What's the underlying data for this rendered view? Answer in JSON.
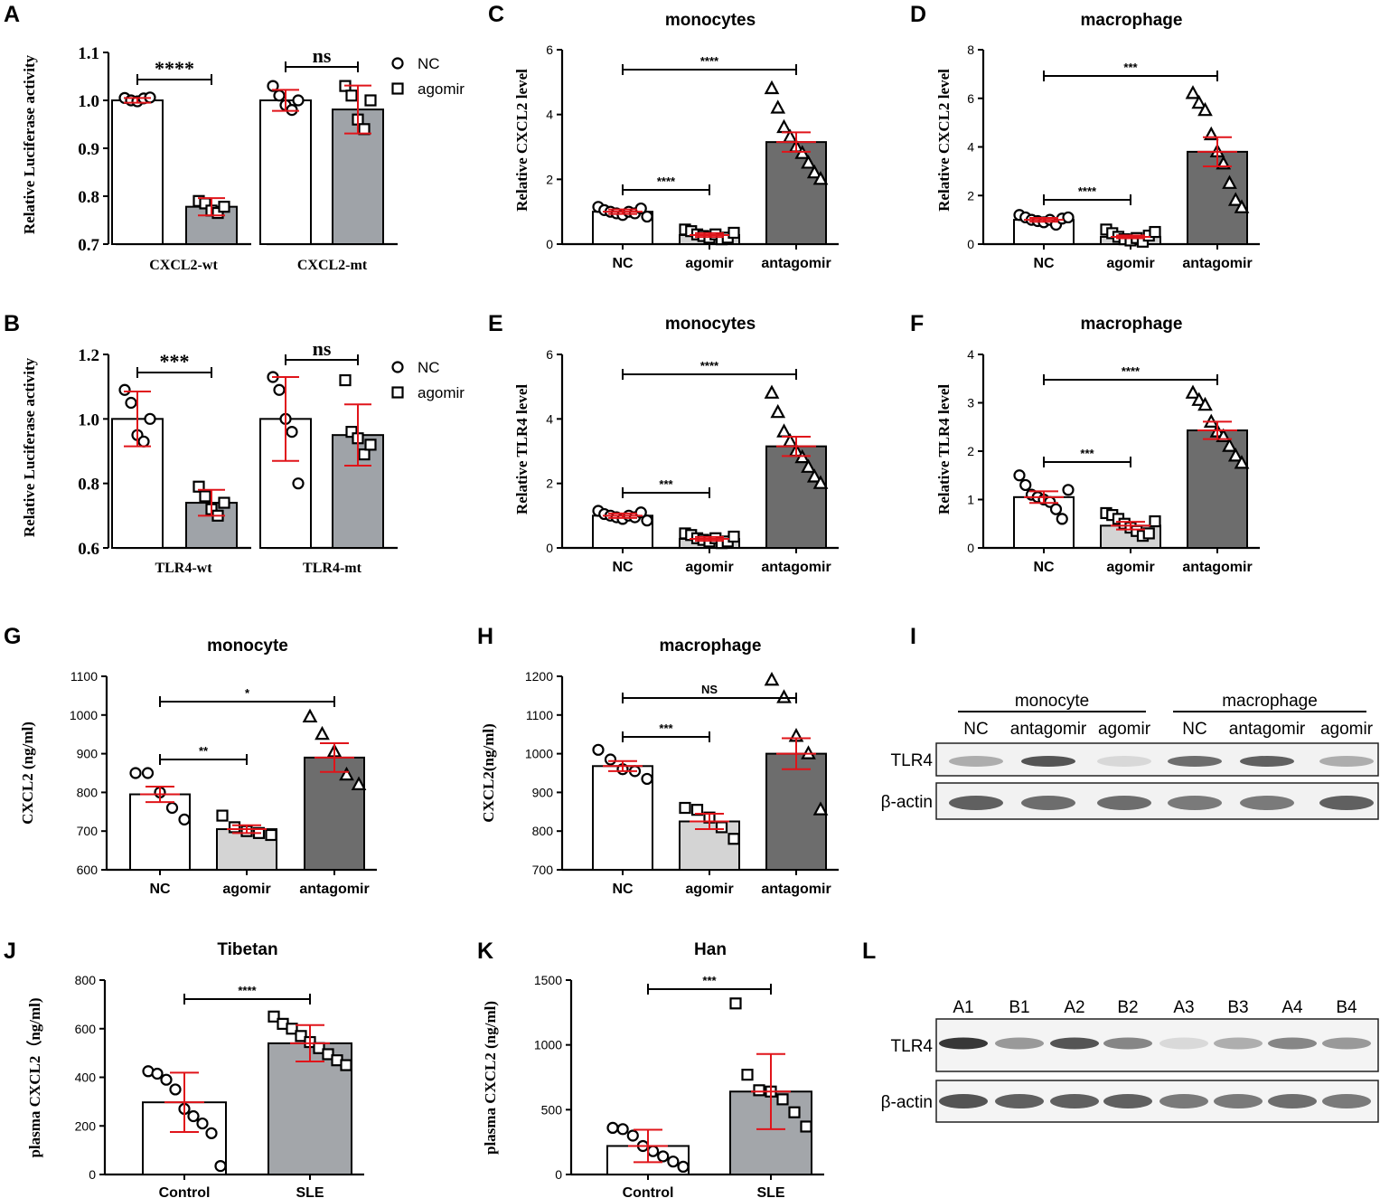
{
  "panel_letters": {
    "A": "A",
    "B": "B",
    "C": "C",
    "D": "D",
    "E": "E",
    "F": "F",
    "G": "G",
    "H": "H",
    "I": "I",
    "J": "J",
    "K": "K",
    "L": "L"
  },
  "colors": {
    "nc": "#ffffff",
    "agomir": "#d4d4d4",
    "antagomir": "#6d6d6d",
    "luc_agomir": "#9fa3a8",
    "sle": "#a3a6aa",
    "error": "#e0141a"
  },
  "chart_data": [
    {
      "id": "A",
      "type": "bar",
      "title": "",
      "ylabel": "Relative Luciferase activity",
      "ylim": [
        0.7,
        1.1
      ],
      "yticks": [
        0.7,
        0.8,
        0.9,
        1.0,
        1.1
      ],
      "ytick_labels": [
        "0.7",
        "0.8",
        "0.9",
        "1.0",
        "1.1"
      ],
      "groups": [
        "CXCL2-wt",
        "CXCL2-mt"
      ],
      "legend": [
        "NC",
        "agomir"
      ],
      "series": [
        {
          "name": "NC",
          "values": [
            1.0,
            1.0
          ],
          "err": [
            0.005,
            0.022
          ],
          "points": [
            [
              1.005,
              1.0,
              0.998,
              1.004,
              1.006
            ],
            [
              1.03,
              1.01,
              0.99,
              0.98,
              1.0
            ]
          ]
        },
        {
          "name": "agomir",
          "values": [
            0.778,
            0.981
          ],
          "err": [
            0.018,
            0.05
          ],
          "points": [
            [
              0.79,
              0.785,
              0.77,
              0.765,
              0.778
            ],
            [
              1.03,
              1.01,
              0.96,
              0.94,
              1.0
            ]
          ]
        }
      ],
      "comparisons": [
        {
          "text": "****",
          "from": 0,
          "to": 1,
          "group": 0
        },
        {
          "text": "ns",
          "from": 0,
          "to": 1,
          "group": 1
        }
      ]
    },
    {
      "id": "B",
      "type": "bar",
      "title": "",
      "ylabel": "Relative Luciferase activity",
      "ylim": [
        0.6,
        1.2
      ],
      "yticks": [
        0.6,
        0.8,
        1.0,
        1.2
      ],
      "ytick_labels": [
        "0.6",
        "0.8",
        "1.0",
        "1.2"
      ],
      "groups": [
        "TLR4-wt",
        "TLR4-mt"
      ],
      "legend": [
        "NC",
        "agomir"
      ],
      "series": [
        {
          "name": "NC",
          "values": [
            1.0,
            1.0
          ],
          "err": [
            0.085,
            0.13
          ],
          "points": [
            [
              1.09,
              1.05,
              0.95,
              0.93,
              1.0
            ],
            [
              1.13,
              1.09,
              1.0,
              0.96,
              0.8
            ]
          ]
        },
        {
          "name": "agomir",
          "values": [
            0.74,
            0.95
          ],
          "err": [
            0.04,
            0.095
          ],
          "points": [
            [
              0.79,
              0.76,
              0.72,
              0.7,
              0.74
            ],
            [
              1.12,
              0.96,
              0.94,
              0.89,
              0.92
            ]
          ]
        }
      ],
      "comparisons": [
        {
          "text": "***",
          "from": 0,
          "to": 1,
          "group": 0
        },
        {
          "text": "ns",
          "from": 0,
          "to": 1,
          "group": 1
        }
      ]
    },
    {
      "id": "C",
      "type": "bar",
      "title": "monocytes",
      "ylabel": "Relative CXCL2  level",
      "ylim": [
        0,
        6
      ],
      "yticks": [
        0,
        2,
        4,
        6
      ],
      "ytick_labels": [
        "0",
        "2",
        "4",
        "6"
      ],
      "categories": [
        "NC",
        "agomir",
        "antagomir"
      ],
      "values": [
        1.0,
        0.28,
        3.15
      ],
      "err": [
        0.07,
        0.06,
        0.3
      ],
      "markers": [
        "circle",
        "square",
        "triangle"
      ],
      "points": [
        [
          1.15,
          1.05,
          1.0,
          0.95,
          0.9,
          1.0,
          0.95,
          1.1,
          0.85
        ],
        [
          0.45,
          0.4,
          0.3,
          0.25,
          0.2,
          0.3,
          0.15,
          0.2,
          0.35
        ],
        [
          4.8,
          4.2,
          3.6,
          3.3,
          3.0,
          2.8,
          2.5,
          2.2,
          2.0
        ]
      ],
      "comparisons": [
        {
          "text": "****",
          "from": 0,
          "to": 2
        },
        {
          "text": "****",
          "from": 0,
          "to": 1
        }
      ]
    },
    {
      "id": "D",
      "type": "bar",
      "title": "macrophage",
      "ylabel": "Relative CXCL2  level",
      "ylim": [
        0,
        8
      ],
      "yticks": [
        0,
        2,
        4,
        6,
        8
      ],
      "ytick_labels": [
        "0",
        "2",
        "4",
        "6",
        "8"
      ],
      "categories": [
        "NC",
        "agomir",
        "antagomir"
      ],
      "values": [
        1.0,
        0.3,
        3.8
      ],
      "err": [
        0.08,
        0.06,
        0.6
      ],
      "markers": [
        "circle",
        "square",
        "triangle"
      ],
      "points": [
        [
          1.2,
          1.1,
          1.0,
          0.95,
          0.9,
          1.0,
          0.8,
          1.05,
          1.1
        ],
        [
          0.6,
          0.45,
          0.3,
          0.2,
          0.15,
          0.25,
          0.1,
          0.35,
          0.5
        ],
        [
          6.2,
          5.8,
          5.5,
          4.5,
          3.8,
          3.3,
          2.5,
          1.8,
          1.5
        ]
      ],
      "comparisons": [
        {
          "text": "***",
          "from": 0,
          "to": 2
        },
        {
          "text": "****",
          "from": 0,
          "to": 1
        }
      ]
    },
    {
      "id": "E",
      "type": "bar",
      "title": "monocytes",
      "ylabel": "Relative TLR4  level",
      "ylim": [
        0,
        6
      ],
      "yticks": [
        0,
        2,
        4,
        6
      ],
      "ytick_labels": [
        "0",
        "2",
        "4",
        "6"
      ],
      "categories": [
        "NC",
        "agomir",
        "antagomir"
      ],
      "values": [
        1.0,
        0.28,
        3.15
      ],
      "err": [
        0.07,
        0.06,
        0.3
      ],
      "markers": [
        "circle",
        "square",
        "triangle"
      ],
      "points": [
        [
          1.15,
          1.05,
          1.0,
          0.95,
          0.9,
          1.0,
          0.95,
          1.1,
          0.85
        ],
        [
          0.45,
          0.4,
          0.3,
          0.25,
          0.2,
          0.3,
          0.15,
          0.2,
          0.35
        ],
        [
          4.8,
          4.2,
          3.6,
          3.3,
          3.0,
          2.8,
          2.5,
          2.2,
          2.0
        ]
      ],
      "comparisons": [
        {
          "text": "****",
          "from": 0,
          "to": 2
        },
        {
          "text": "***",
          "from": 0,
          "to": 1
        }
      ]
    },
    {
      "id": "F",
      "type": "bar",
      "title": "macrophage",
      "ylabel": "Relative TLR4  level",
      "ylim": [
        0,
        4
      ],
      "yticks": [
        0,
        1,
        2,
        3,
        4
      ],
      "ytick_labels": [
        "0",
        "1",
        "2",
        "3",
        "4"
      ],
      "categories": [
        "NC",
        "agomir",
        "antagomir"
      ],
      "values": [
        1.05,
        0.46,
        2.43
      ],
      "err": [
        0.12,
        0.08,
        0.18
      ],
      "markers": [
        "circle",
        "square",
        "triangle"
      ],
      "points": [
        [
          1.5,
          1.3,
          1.1,
          1.05,
          1.0,
          0.95,
          0.8,
          0.6,
          1.2
        ],
        [
          0.72,
          0.68,
          0.6,
          0.5,
          0.42,
          0.35,
          0.25,
          0.3,
          0.55
        ],
        [
          3.2,
          3.05,
          2.95,
          2.6,
          2.4,
          2.3,
          2.1,
          1.9,
          1.75
        ]
      ],
      "comparisons": [
        {
          "text": "****",
          "from": 0,
          "to": 2
        },
        {
          "text": "***",
          "from": 0,
          "to": 1
        }
      ]
    },
    {
      "id": "G",
      "type": "bar",
      "title": "monocyte",
      "ylabel": "CXCL2 (ng/ml)",
      "ylim": [
        600,
        1100
      ],
      "yticks": [
        600,
        700,
        800,
        900,
        1000,
        1100
      ],
      "ytick_labels": [
        "600",
        "700",
        "800",
        "900",
        "1000",
        "1100"
      ],
      "categories": [
        "NC",
        "agomir",
        "antagomir"
      ],
      "values": [
        795,
        705,
        890
      ],
      "err": [
        20,
        10,
        37
      ],
      "markers": [
        "circle",
        "square",
        "triangle"
      ],
      "points": [
        [
          850,
          850,
          800,
          760,
          730
        ],
        [
          740,
          710,
          700,
          695,
          690
        ],
        [
          995,
          950,
          905,
          845,
          820
        ]
      ],
      "comparisons": [
        {
          "text": "*",
          "from": 0,
          "to": 2
        },
        {
          "text": "**",
          "from": 0,
          "to": 1
        }
      ]
    },
    {
      "id": "H",
      "type": "bar",
      "title": "macrophage",
      "ylabel": "CXCL2(ng/ml)",
      "ylim": [
        700,
        1200
      ],
      "yticks": [
        700,
        800,
        900,
        1000,
        1100,
        1200
      ],
      "ytick_labels": [
        "700",
        "800",
        "900",
        "1000",
        "1100",
        "1200"
      ],
      "categories": [
        "NC",
        "agomir",
        "antagomir"
      ],
      "values": [
        968,
        825,
        1000
      ],
      "err": [
        13,
        20,
        40
      ],
      "markers": [
        "circle",
        "square",
        "triangle"
      ],
      "points": [
        [
          1010,
          985,
          960,
          955,
          935
        ],
        [
          860,
          855,
          835,
          810,
          780
        ],
        [
          1190,
          1145,
          1045,
          1000,
          855
        ]
      ],
      "comparisons": [
        {
          "text": "NS",
          "from": 0,
          "to": 2
        },
        {
          "text": "***",
          "from": 0,
          "to": 1
        }
      ]
    },
    {
      "id": "J",
      "type": "bar",
      "title": "Tibetan",
      "ylabel": "plasma CXCL2（ng/ml)",
      "ylim": [
        0,
        800
      ],
      "yticks": [
        0,
        200,
        400,
        600,
        800
      ],
      "ytick_labels": [
        "0",
        "200",
        "400",
        "600",
        "800"
      ],
      "categories": [
        "Control",
        "SLE"
      ],
      "values": [
        297,
        540
      ],
      "err": [
        122,
        75
      ],
      "markers": [
        "circle",
        "square"
      ],
      "points": [
        [
          425,
          415,
          390,
          350,
          270,
          240,
          210,
          170,
          35
        ],
        [
          650,
          620,
          600,
          570,
          545,
          520,
          495,
          470,
          450
        ]
      ],
      "comparisons": [
        {
          "text": "****",
          "from": 0,
          "to": 1
        }
      ]
    },
    {
      "id": "K",
      "type": "bar",
      "title": "Han",
      "ylabel": "plasma CXCL2 (ng/ml)",
      "ylim": [
        0,
        1500
      ],
      "yticks": [
        0,
        500,
        1000,
        1500
      ],
      "ytick_labels": [
        "0",
        "500",
        "1000",
        "1500"
      ],
      "categories": [
        "Control",
        "SLE"
      ],
      "values": [
        220,
        640
      ],
      "err": [
        125,
        290
      ],
      "markers": [
        "circle",
        "square"
      ],
      "points": [
        [
          360,
          350,
          300,
          220,
          180,
          140,
          100,
          60
        ],
        [
          1320,
          770,
          650,
          640,
          580,
          480,
          370
        ]
      ],
      "comparisons": [
        {
          "text": "***",
          "from": 0,
          "to": 1
        }
      ]
    }
  ],
  "blots": {
    "I": {
      "groups": [
        "monocyte",
        "macrophage"
      ],
      "lanes": [
        "NC",
        "antagomir",
        "agomir",
        "NC",
        "antagomir",
        "agomir"
      ],
      "rows": [
        "TLR4",
        "β-actin"
      ],
      "intensity": [
        [
          0.45,
          0.85,
          0.15,
          0.75,
          0.8,
          0.45
        ],
        [
          0.8,
          0.75,
          0.75,
          0.7,
          0.7,
          0.8
        ]
      ]
    },
    "L": {
      "lanes": [
        "A1",
        "B1",
        "A2",
        "B2",
        "A3",
        "B3",
        "A4",
        "B4"
      ],
      "rows": [
        "TLR4",
        "β-actin"
      ],
      "intensity": [
        [
          0.95,
          0.55,
          0.85,
          0.65,
          0.15,
          0.45,
          0.65,
          0.55
        ],
        [
          0.85,
          0.8,
          0.8,
          0.8,
          0.7,
          0.7,
          0.75,
          0.7
        ]
      ]
    }
  }
}
